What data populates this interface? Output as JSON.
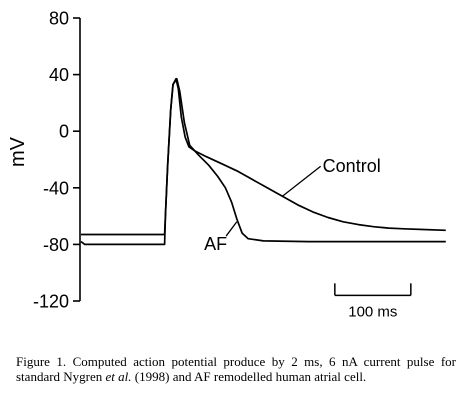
{
  "chart_data": {
    "type": "line",
    "ylabel": "mV",
    "ylim": [
      -120,
      80
    ],
    "yticks": [
      80,
      40,
      0,
      -40,
      -80,
      -120
    ],
    "xlim_ms": [
      0,
      500
    ],
    "grid": false,
    "series": [
      {
        "name": "Control",
        "points": [
          [
            0,
            -73
          ],
          [
            5,
            -73
          ],
          [
            50,
            -73
          ],
          [
            100,
            -73
          ],
          [
            110,
            -73
          ],
          [
            111,
            -60
          ],
          [
            114,
            -25
          ],
          [
            118,
            15
          ],
          [
            121,
            33
          ],
          [
            125,
            37
          ],
          [
            128,
            30
          ],
          [
            132,
            10
          ],
          [
            137,
            -4
          ],
          [
            142,
            -11
          ],
          [
            150,
            -14
          ],
          [
            165,
            -18
          ],
          [
            185,
            -23
          ],
          [
            205,
            -28
          ],
          [
            225,
            -34
          ],
          [
            245,
            -40
          ],
          [
            265,
            -46
          ],
          [
            285,
            -52
          ],
          [
            305,
            -57
          ],
          [
            325,
            -61
          ],
          [
            345,
            -64
          ],
          [
            365,
            -66
          ],
          [
            385,
            -67.5
          ],
          [
            405,
            -68.5
          ],
          [
            425,
            -69
          ],
          [
            450,
            -69.5
          ],
          [
            480,
            -70
          ]
        ]
      },
      {
        "name": "AF",
        "points": [
          [
            0,
            -78
          ],
          [
            5,
            -80
          ],
          [
            30,
            -80
          ],
          [
            70,
            -80
          ],
          [
            110,
            -80
          ],
          [
            111,
            -60
          ],
          [
            114,
            -25
          ],
          [
            118,
            15
          ],
          [
            121,
            33
          ],
          [
            126,
            37
          ],
          [
            130,
            28
          ],
          [
            136,
            6
          ],
          [
            143,
            -10
          ],
          [
            155,
            -17
          ],
          [
            168,
            -24
          ],
          [
            180,
            -32
          ],
          [
            190,
            -40
          ],
          [
            198,
            -50
          ],
          [
            205,
            -62
          ],
          [
            212,
            -72
          ],
          [
            220,
            -76
          ],
          [
            240,
            -77.5
          ],
          [
            300,
            -78
          ],
          [
            400,
            -78
          ],
          [
            480,
            -78
          ]
        ]
      }
    ],
    "annotations": [
      {
        "text": "Control",
        "x": 318,
        "y": -29,
        "points_to": [
          265,
          -46
        ]
      },
      {
        "text": "AF",
        "x": 162,
        "y": -84,
        "points_to": [
          205,
          -64
        ]
      }
    ],
    "scale_bar": {
      "label": "100 ms",
      "length_ms": 100,
      "x_start_ms": 334,
      "y": -116
    }
  },
  "caption": {
    "part1": "Figure 1. Computed action potential produce by 2 ms, 6 nA current pulse for standard Nygren ",
    "italic": "et al.",
    "part2": " (1998) and AF remodelled human atrial cell."
  }
}
